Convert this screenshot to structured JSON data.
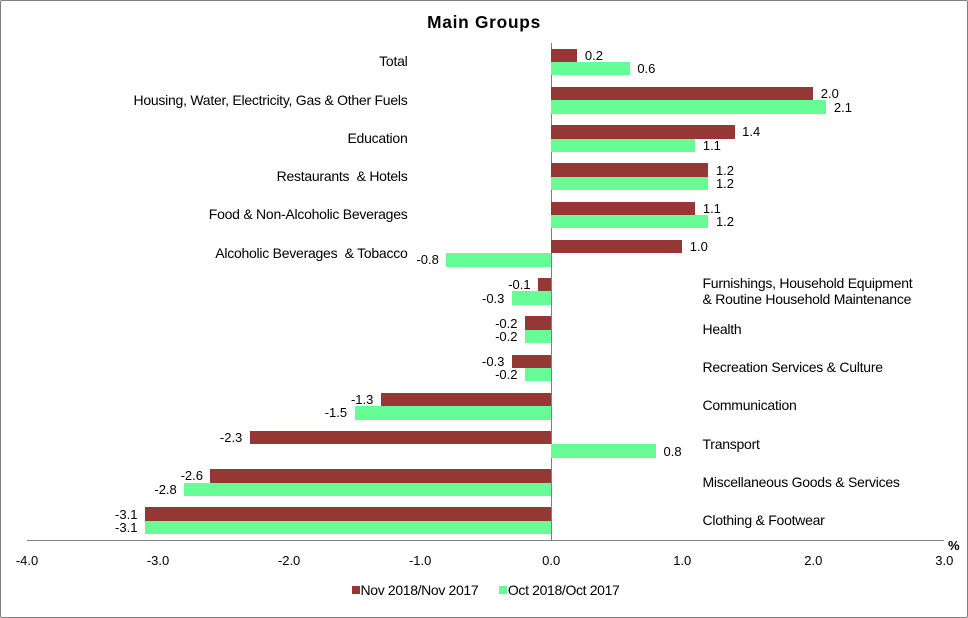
{
  "chart_data": {
    "type": "bar",
    "orientation": "horizontal",
    "title": "Main Groups",
    "axis_unit_label": "%",
    "xlabel": "",
    "ylabel": "",
    "xlim": [
      -4.0,
      3.0
    ],
    "xtick_labels": [
      "-4.0",
      "-3.0",
      "-2.0",
      "-1.0",
      "0.0",
      "1.0",
      "2.0",
      "3.0"
    ],
    "xtick_values": [
      -4.0,
      -3.0,
      -2.0,
      -1.0,
      0.0,
      1.0,
      2.0,
      3.0
    ],
    "grid": false,
    "legend_position": "bottom",
    "value_labels_shown": true,
    "categories": [
      "Total",
      "Housing, Water, Electricity, Gas & Other Fuels",
      "Education",
      "Restaurants  & Hotels",
      "Food & Non-Alcoholic Beverages",
      "Alcoholic Beverages  & Tobacco",
      "Furnishings, Household Equipment\n& Routine Household Maintenance",
      "Health",
      "Recreation Services & Culture",
      "Communication",
      "Transport",
      "Miscellaneous Goods & Services",
      "Clothing & Footwear"
    ],
    "series": [
      {
        "name": "Nov 2018/Nov 2017",
        "color": "#953735",
        "values": [
          0.2,
          2.0,
          1.4,
          1.2,
          1.1,
          1.0,
          -0.1,
          -0.2,
          -0.3,
          -1.3,
          -2.3,
          -2.6,
          -3.1
        ]
      },
      {
        "name": "Oct 2018/Oct 2017",
        "color": "#66FD97",
        "values": [
          0.6,
          2.1,
          1.1,
          1.2,
          1.2,
          -0.8,
          -0.3,
          -0.2,
          -0.2,
          -1.5,
          0.8,
          -2.8,
          -3.1
        ]
      }
    ],
    "axis_color": "#808080",
    "text_color": "#000000"
  }
}
